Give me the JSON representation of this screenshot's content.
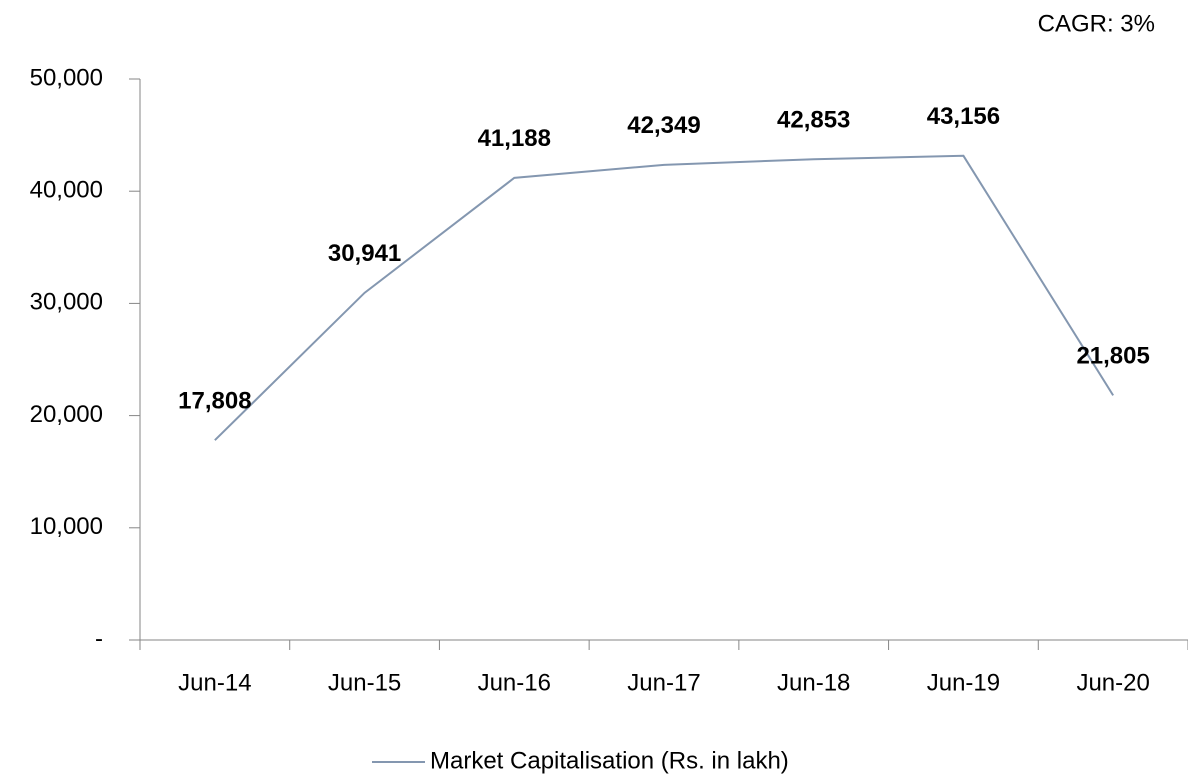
{
  "chart_data": {
    "type": "line",
    "annotation": "CAGR: 3%",
    "categories": [
      "Jun-14",
      "Jun-15",
      "Jun-16",
      "Jun-17",
      "Jun-18",
      "Jun-19",
      "Jun-20"
    ],
    "series": [
      {
        "name": "Market Capitalisation (Rs. in lakh)",
        "color": "#8497b0",
        "values": [
          17808,
          30941,
          41188,
          42349,
          42853,
          43156,
          21805
        ],
        "value_labels": [
          "17,808",
          "30,941",
          "41,188",
          "42,349",
          "42,853",
          "43,156",
          "21,805"
        ]
      }
    ],
    "ylim": [
      0,
      50000
    ],
    "yticks": [
      {
        "value": 0,
        "label": "-"
      },
      {
        "value": 10000,
        "label": "10,000"
      },
      {
        "value": 20000,
        "label": "20,000"
      },
      {
        "value": 30000,
        "label": "30,000"
      },
      {
        "value": 40000,
        "label": "40,000"
      },
      {
        "value": 50000,
        "label": "50,000"
      }
    ],
    "legend": "bottom"
  }
}
